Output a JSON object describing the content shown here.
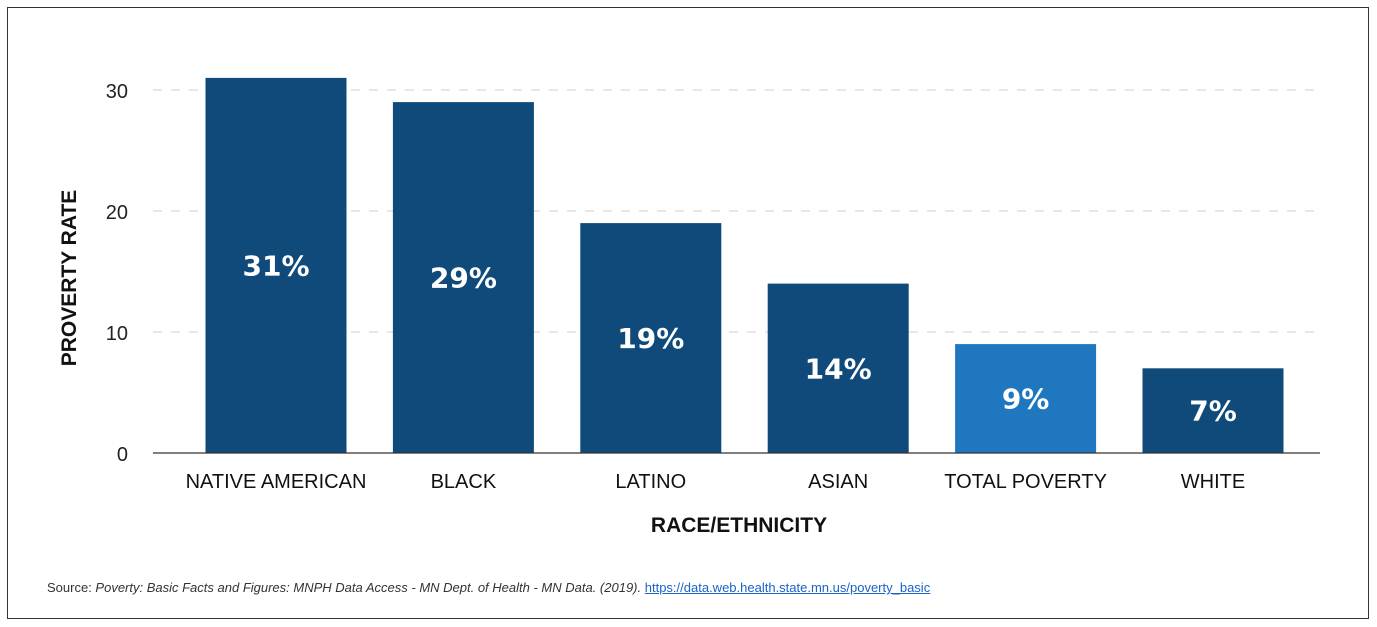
{
  "chart_data": {
    "type": "bar",
    "categories": [
      "NATIVE AMERICAN",
      "BLACK",
      "LATINO",
      "ASIAN",
      "TOTAL POVERTY",
      "WHITE"
    ],
    "values": [
      31,
      29,
      19,
      14,
      9,
      7
    ],
    "data_labels": [
      "31%",
      "29%",
      "19%",
      "14%",
      "9%",
      "7%"
    ],
    "bar_colors": [
      "#0f4a7b",
      "#0f4a7b",
      "#0f4a7b",
      "#0f4a7b",
      "#1f77bf",
      "#0f4a7b"
    ],
    "xlabel": "RACE/ETHNICITY",
    "ylabel": "PROVERTY RATE",
    "ylim": [
      0,
      30
    ],
    "yticks": [
      0,
      10,
      20,
      30
    ],
    "grid": true
  },
  "source": {
    "prefix": "Source: ",
    "citation": "Poverty: Basic Facts and Figures: MNPH Data Access - MN Dept. of Health - MN Data. (2019).",
    "link": "https://data.web.health.state.mn.us/poverty_basic"
  }
}
